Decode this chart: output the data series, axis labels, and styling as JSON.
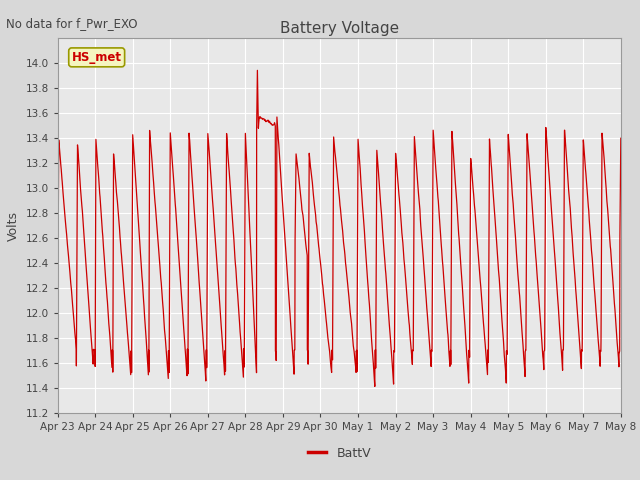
{
  "title": "Battery Voltage",
  "ylabel": "Volts",
  "annotation": "No data for f_Pwr_EXO",
  "legend_label": "BattV",
  "legend_label2": "HS_met",
  "ylim": [
    11.2,
    14.2
  ],
  "yticks": [
    11.2,
    11.4,
    11.6,
    11.8,
    12.0,
    12.2,
    12.4,
    12.6,
    12.8,
    13.0,
    13.2,
    13.4,
    13.6,
    13.8,
    14.0
  ],
  "xtick_labels": [
    "Apr 23",
    "Apr 24",
    "Apr 25",
    "Apr 26",
    "Apr 27",
    "Apr 28",
    "Apr 29",
    "Apr 30",
    "May 1",
    "May 2",
    "May 3",
    "May 4",
    "May 5",
    "May 6",
    "May 7",
    "May 8"
  ],
  "line_color": "#cc0000",
  "hs_met_color": "#cc0000",
  "bg_color": "#d8d8d8",
  "plot_bg_color": "#e8e8e8",
  "grid_color": "#ffffff",
  "title_color": "#444444",
  "label_color": "#444444",
  "tick_color": "#444444"
}
